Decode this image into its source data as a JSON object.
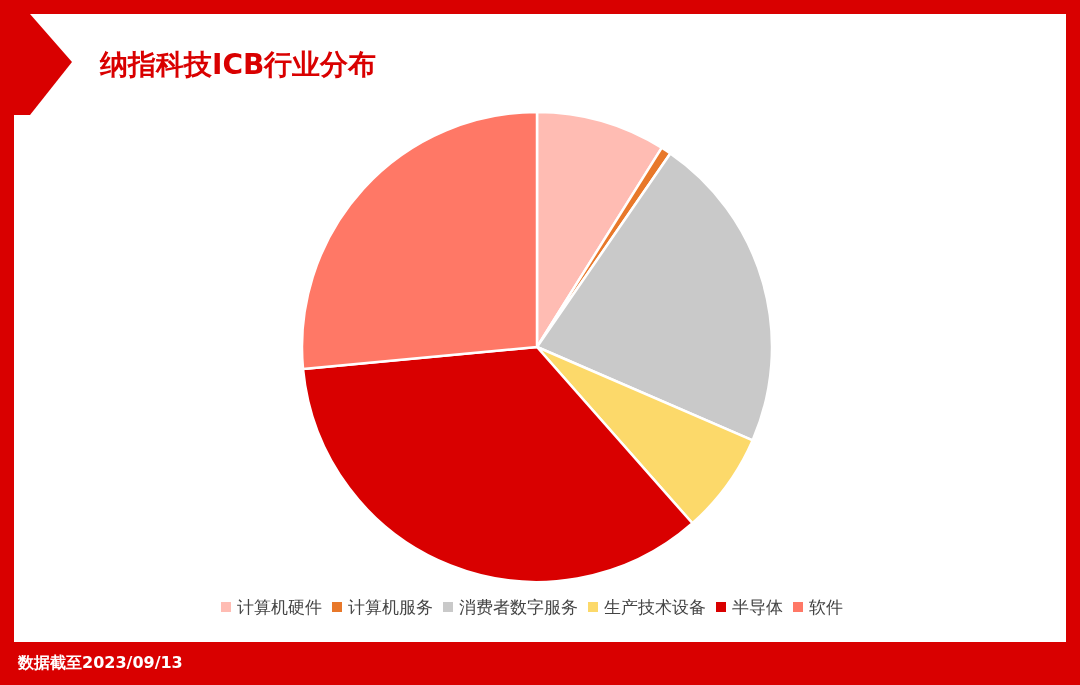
{
  "chart_data": {
    "type": "pie",
    "title": "纳指科技ICB行业分布",
    "categories": [
      "计算机硬件",
      "计算机服务",
      "消费者数字服务",
      "生产技术设备",
      "半导体",
      "软件"
    ],
    "values": [
      8.9,
      0.7,
      21.9,
      7.0,
      35.0,
      26.5
    ],
    "colors": [
      "#ffbcb3",
      "#e8782a",
      "#c9c9c9",
      "#fcd96a",
      "#d90000",
      "#ff7866"
    ],
    "legend": "bottom",
    "annotations": [
      "数据截至2023/09/13"
    ]
  }
}
